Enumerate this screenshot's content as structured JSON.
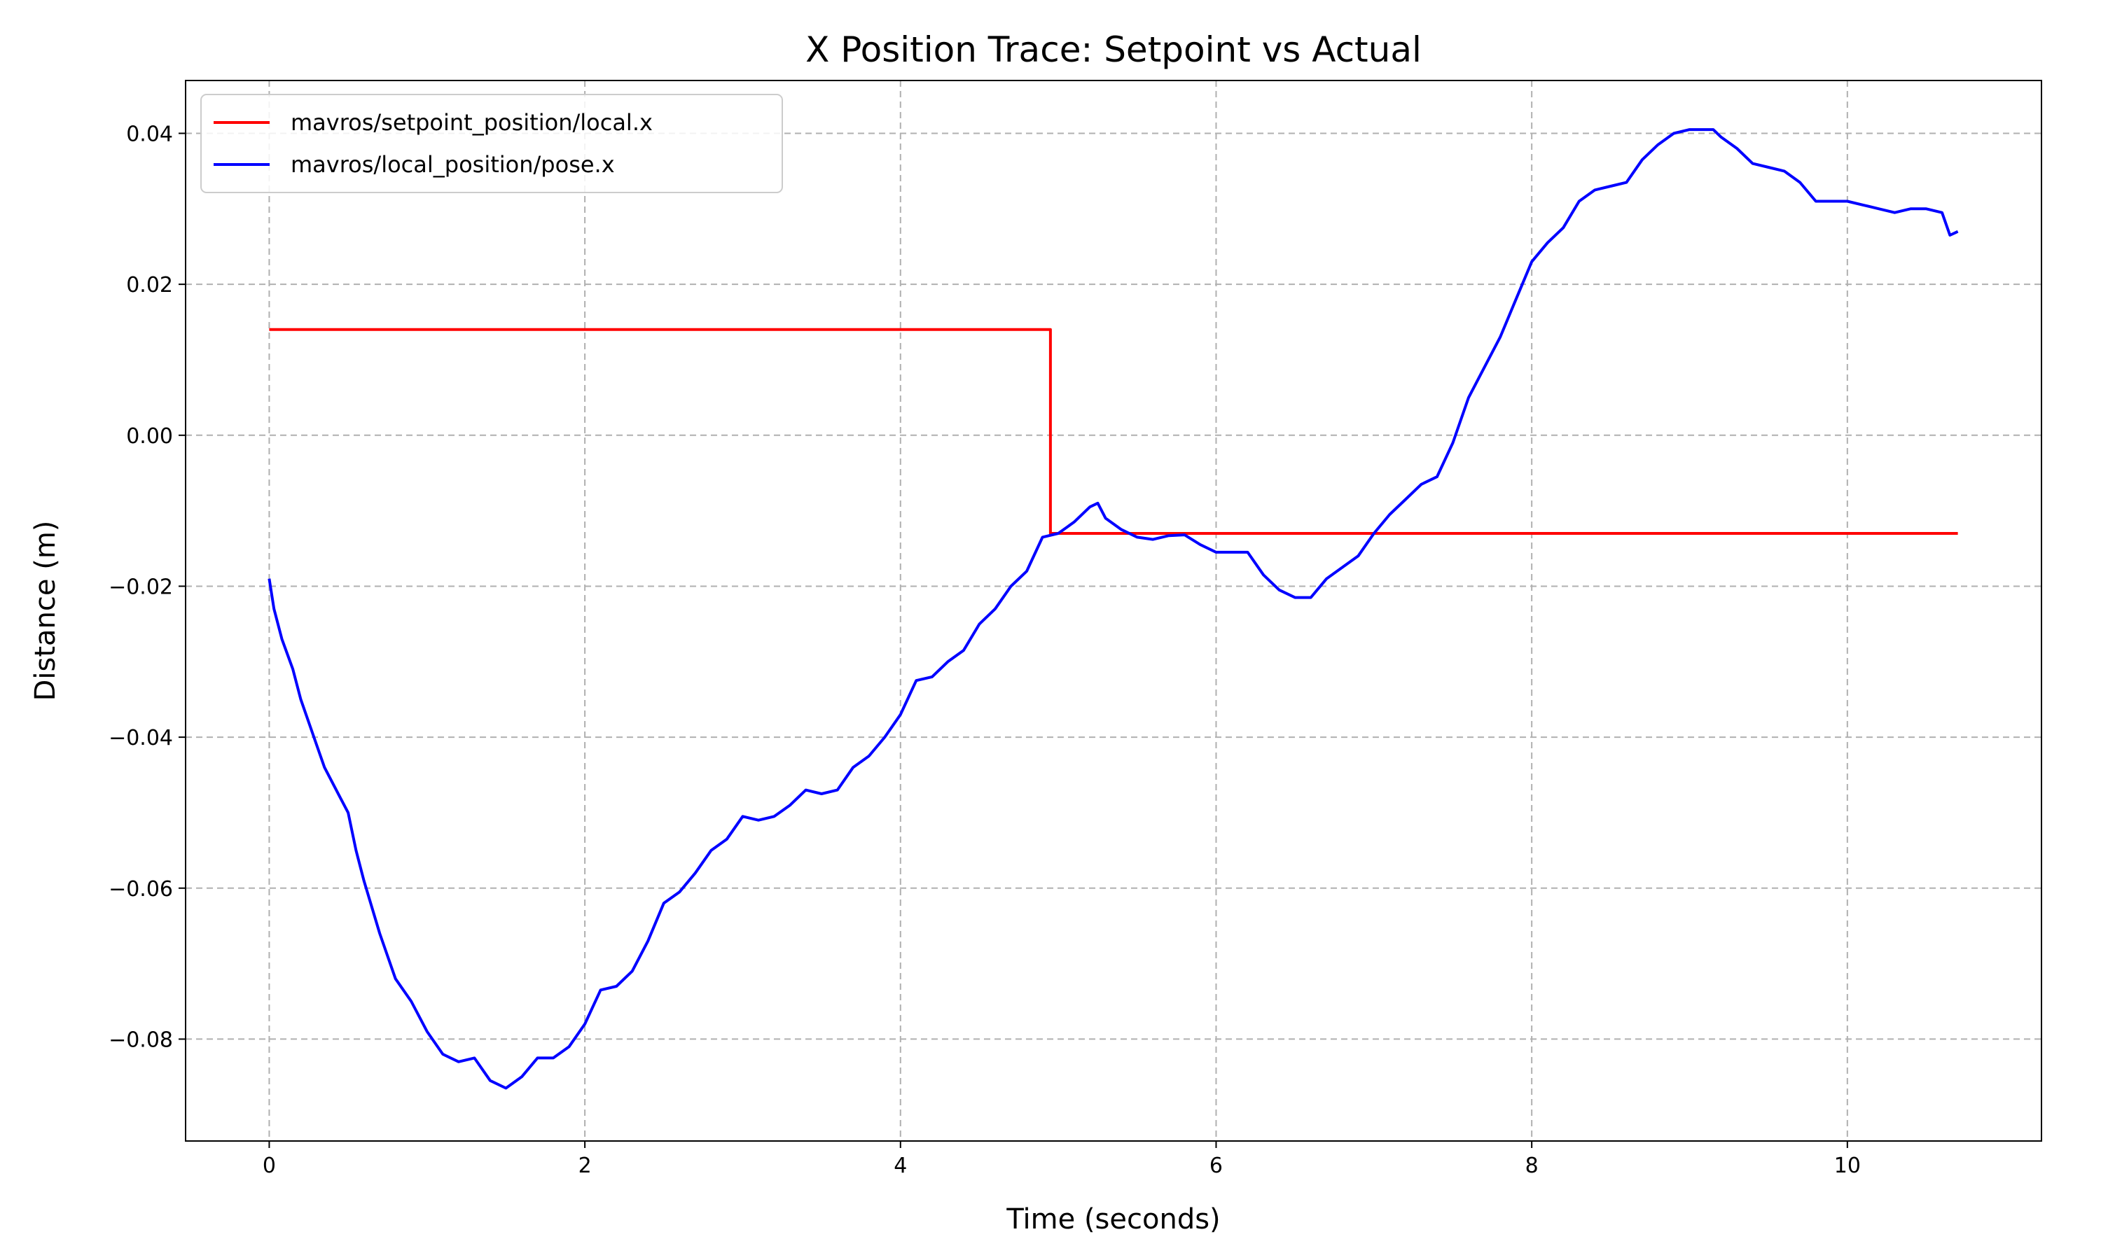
{
  "chart_data": {
    "type": "line",
    "title": "X Position Trace: Setpoint vs Actual",
    "xlabel": "Time (seconds)",
    "ylabel": "Distance (m)",
    "xlim": [
      -0.53,
      11.23
    ],
    "ylim": [
      -0.0935,
      0.047
    ],
    "xticks": [
      0,
      2,
      4,
      6,
      8,
      10
    ],
    "xtick_labels": [
      "0",
      "2",
      "4",
      "6",
      "8",
      "10"
    ],
    "yticks": [
      -0.08,
      -0.06,
      -0.04,
      -0.02,
      0.0,
      0.02,
      0.04
    ],
    "ytick_labels": [
      "−0.08",
      "−0.06",
      "−0.04",
      "−0.02",
      "0.00",
      "0.02",
      "0.04"
    ],
    "grid": true,
    "legend_position": "top-left",
    "series": [
      {
        "name": "mavros/setpoint_position/local.x",
        "color": "#ff0000",
        "step": true,
        "x": [
          0,
          4.95,
          4.95,
          10.7
        ],
        "y": [
          0.014,
          0.014,
          -0.013,
          -0.013
        ]
      },
      {
        "name": "mavros/local_position/pose.x",
        "color": "#0000ff",
        "x": [
          0,
          0.03,
          0.08,
          0.15,
          0.2,
          0.3,
          0.35,
          0.45,
          0.5,
          0.55,
          0.6,
          0.7,
          0.8,
          0.9,
          1.0,
          1.1,
          1.2,
          1.3,
          1.4,
          1.5,
          1.6,
          1.7,
          1.8,
          1.9,
          2.0,
          2.1,
          2.2,
          2.3,
          2.4,
          2.5,
          2.6,
          2.7,
          2.8,
          2.9,
          3.0,
          3.1,
          3.2,
          3.3,
          3.4,
          3.5,
          3.6,
          3.7,
          3.8,
          3.9,
          4.0,
          4.1,
          4.2,
          4.3,
          4.4,
          4.5,
          4.6,
          4.7,
          4.8,
          4.9,
          5.0,
          5.1,
          5.2,
          5.25,
          5.3,
          5.4,
          5.5,
          5.6,
          5.7,
          5.8,
          5.9,
          6.0,
          6.1,
          6.2,
          6.3,
          6.4,
          6.5,
          6.6,
          6.7,
          6.8,
          6.9,
          7.0,
          7.1,
          7.2,
          7.3,
          7.4,
          7.5,
          7.6,
          7.7,
          7.8,
          7.9,
          8.0,
          8.1,
          8.2,
          8.3,
          8.4,
          8.5,
          8.6,
          8.7,
          8.8,
          8.9,
          9.0,
          9.1,
          9.15,
          9.2,
          9.3,
          9.4,
          9.5,
          9.6,
          9.7,
          9.8,
          9.9,
          10.0,
          10.1,
          10.2,
          10.3,
          10.4,
          10.5,
          10.6,
          10.65,
          10.7
        ],
        "y": [
          -0.019,
          -0.023,
          -0.027,
          -0.031,
          -0.035,
          -0.041,
          -0.044,
          -0.048,
          -0.05,
          -0.055,
          -0.059,
          -0.066,
          -0.072,
          -0.075,
          -0.079,
          -0.082,
          -0.083,
          -0.0825,
          -0.0855,
          -0.0865,
          -0.085,
          -0.0825,
          -0.0825,
          -0.081,
          -0.078,
          -0.0735,
          -0.073,
          -0.071,
          -0.067,
          -0.062,
          -0.0605,
          -0.058,
          -0.055,
          -0.0535,
          -0.0505,
          -0.051,
          -0.0505,
          -0.049,
          -0.047,
          -0.0475,
          -0.047,
          -0.044,
          -0.0425,
          -0.04,
          -0.037,
          -0.0325,
          -0.032,
          -0.03,
          -0.0285,
          -0.025,
          -0.023,
          -0.02,
          -0.018,
          -0.0135,
          -0.013,
          -0.0115,
          -0.0095,
          -0.009,
          -0.011,
          -0.0125,
          -0.0135,
          -0.0138,
          -0.0133,
          -0.0132,
          -0.0145,
          -0.0155,
          -0.0155,
          -0.0155,
          -0.0185,
          -0.0205,
          -0.0215,
          -0.0215,
          -0.019,
          -0.0175,
          -0.016,
          -0.013,
          -0.0105,
          -0.0085,
          -0.0065,
          -0.0055,
          -0.001,
          0.005,
          0.009,
          0.013,
          0.018,
          0.023,
          0.0255,
          0.0275,
          0.031,
          0.0325,
          0.033,
          0.0335,
          0.0365,
          0.0385,
          0.04,
          0.0405,
          0.0405,
          0.0405,
          0.0395,
          0.038,
          0.036,
          0.0355,
          0.035,
          0.0335,
          0.031,
          0.031,
          0.031,
          0.0305,
          0.03,
          0.0295,
          0.03,
          0.03,
          0.0295,
          0.0265,
          0.027
        ]
      }
    ]
  }
}
